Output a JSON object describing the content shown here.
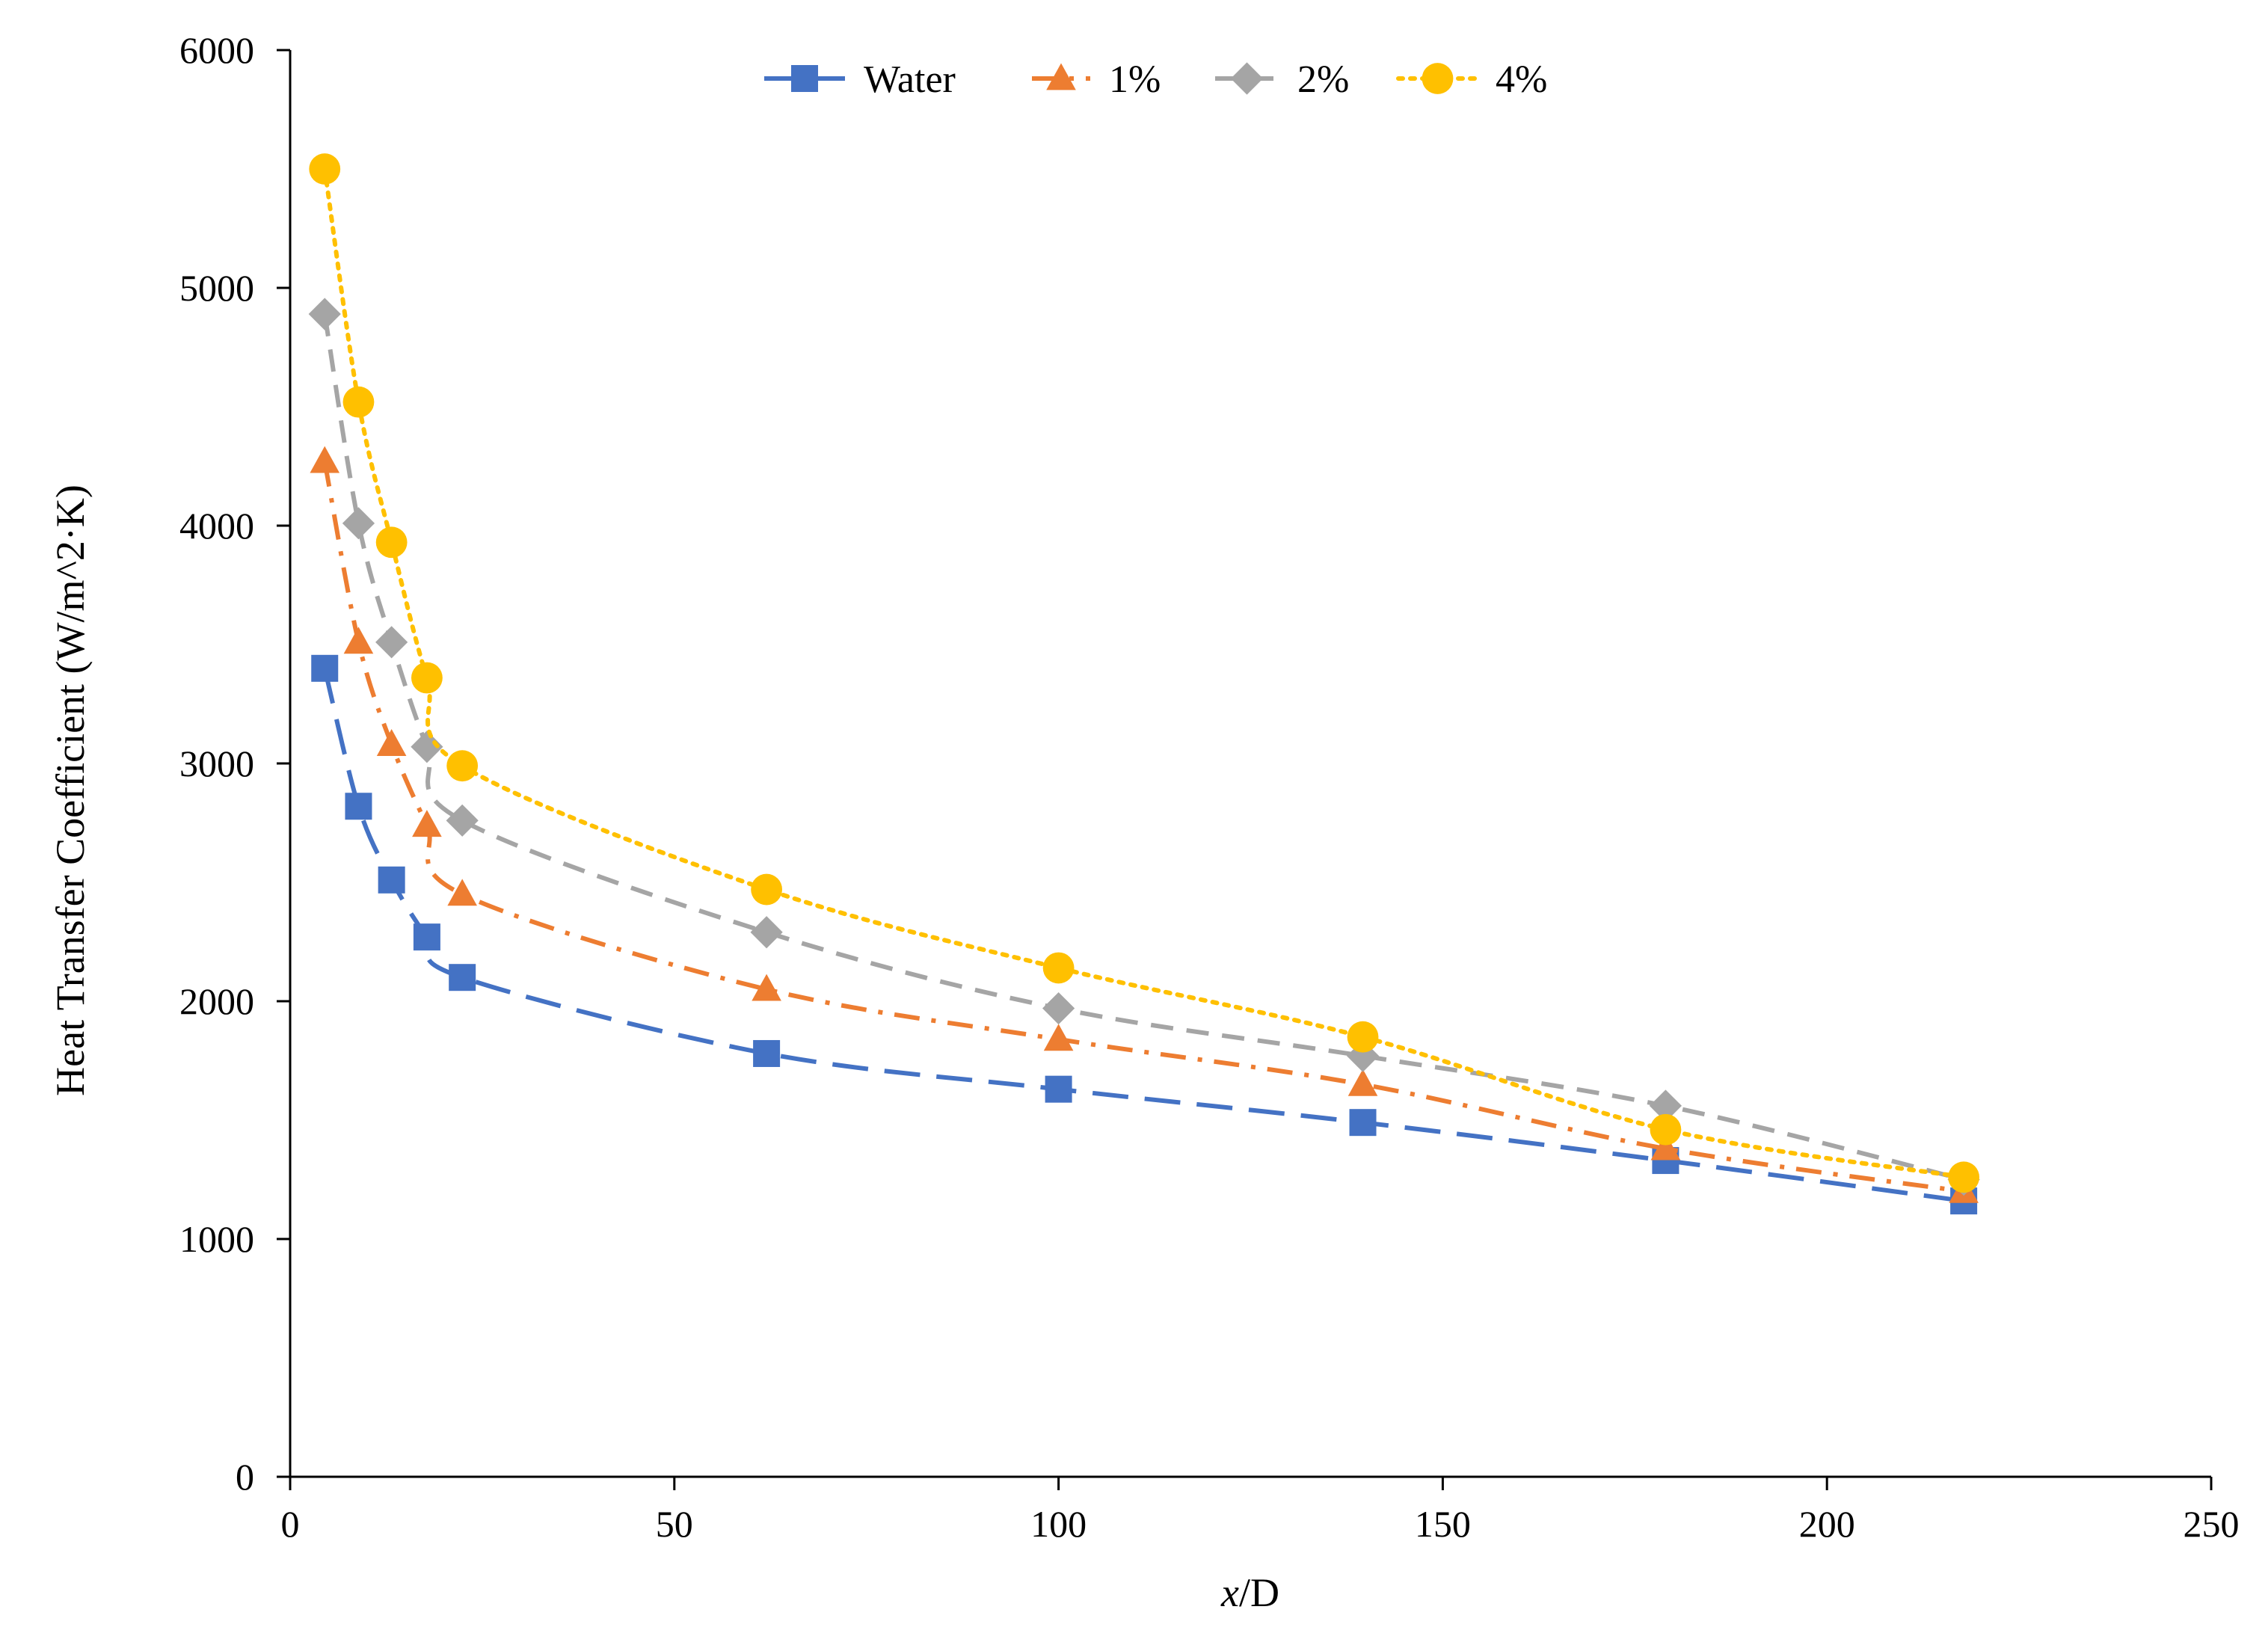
{
  "chart_data": {
    "type": "line",
    "title": "",
    "xlabel": {
      "italic_part": "x",
      "rest": "/D"
    },
    "ylabel": "Heat Transfer Coefficient (W/m^2·K)",
    "xlim": [
      0,
      250
    ],
    "ylim": [
      0,
      6000
    ],
    "xticks": [
      0,
      50,
      100,
      150,
      200,
      250
    ],
    "yticks": [
      0,
      1000,
      2000,
      3000,
      4000,
      5000,
      6000
    ],
    "xtick_labels": [
      "0",
      "50",
      "100",
      "150",
      "200",
      "250"
    ],
    "ytick_labels": [
      "0",
      "1000",
      "2000",
      "3000",
      "4000",
      "5000",
      "6000"
    ],
    "grid": false,
    "legend_position": "top-center",
    "x": [
      4.5,
      8.9,
      13.2,
      17.8,
      22.4,
      62,
      100,
      139.6,
      179,
      217.8
    ],
    "series": [
      {
        "name": "Water",
        "color": "#4472C4",
        "marker": "square",
        "dash": "long-dash",
        "values": [
          3400,
          2820,
          2510,
          2270,
          2100,
          1780,
          1630,
          1490,
          1330,
          1160
        ]
      },
      {
        "name": "1%",
        "color": "#ED7D31",
        "marker": "triangle",
        "dash": "dash-dot",
        "values": [
          4270,
          3510,
          3080,
          2740,
          2450,
          2050,
          1840,
          1650,
          1380,
          1200
        ]
      },
      {
        "name": "2%",
        "color": "#A5A5A5",
        "marker": "diamond",
        "dash": "dash",
        "values": [
          4890,
          4010,
          3510,
          3070,
          2760,
          2290,
          1970,
          1770,
          1560,
          1250
        ]
      },
      {
        "name": "4%",
        "color": "#FFC000",
        "marker": "circle",
        "dash": "dot",
        "values": [
          5500,
          4520,
          3930,
          3360,
          2990,
          2470,
          2140,
          1850,
          1460,
          1260
        ]
      }
    ]
  }
}
